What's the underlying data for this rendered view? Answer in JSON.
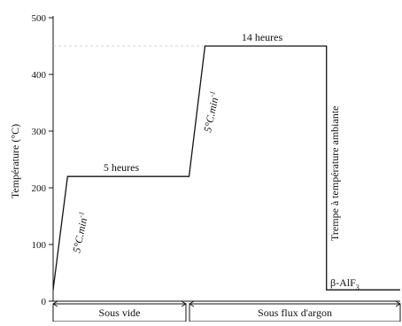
{
  "chart_data": {
    "type": "line",
    "title": "",
    "xlabel": "",
    "ylabel": "Température (°C)",
    "ylim": [
      0,
      500
    ],
    "yticks": [
      0,
      100,
      200,
      300,
      400,
      500
    ],
    "grid": false,
    "series": [
      {
        "values_note": "",
        "points": [
          {
            "x": 0.0,
            "y": 20
          },
          {
            "x": 1.0,
            "y": 220
          },
          {
            "x": 9.4,
            "y": 220
          },
          {
            "x": 10.5,
            "y": 450
          },
          {
            "x": 18.9,
            "y": 450
          },
          {
            "x": 18.9,
            "y": 20
          },
          {
            "x": 24.0,
            "y": 20
          }
        ]
      }
    ],
    "annotations": {
      "hold1": "5 heures",
      "hold2": "14 heures",
      "rate1": "5°C.min",
      "rate1_exp": "-1",
      "rate2": "5°C.min",
      "rate2_exp": "-1",
      "quench": "Trempe à température ambiante",
      "product_prefix": "β-AlF",
      "product_sub": "3"
    },
    "phases": [
      "Sous vide",
      "Sous flux d'argon"
    ]
  }
}
